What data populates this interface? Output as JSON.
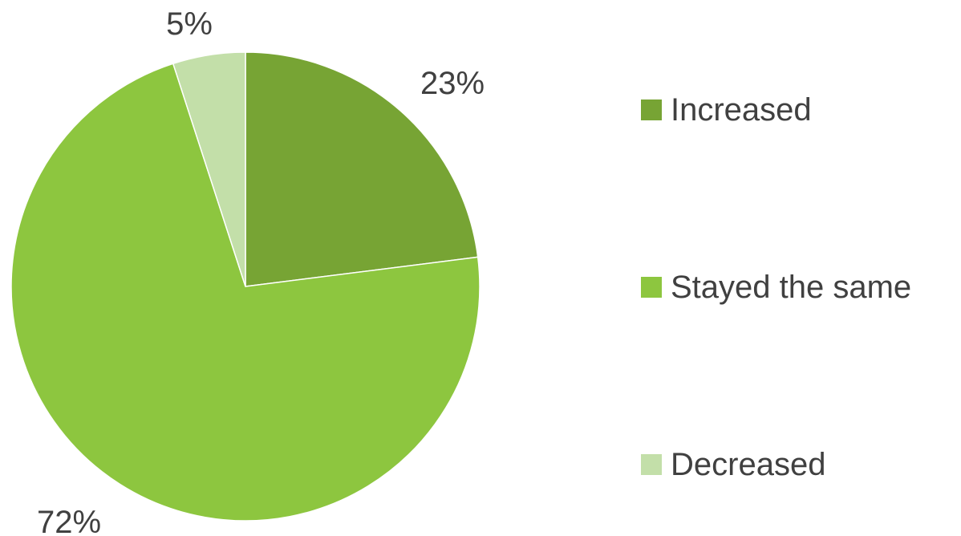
{
  "chart_data": {
    "type": "pie",
    "title": "",
    "slices": [
      {
        "label": "Increased",
        "value": 23,
        "display": "23%",
        "color": "#77a434"
      },
      {
        "label": "Stayed the same",
        "value": 72,
        "display": "72%",
        "color": "#8dc63f"
      },
      {
        "label": "Decreased",
        "value": 5,
        "display": "5%",
        "color": "#c3dfa9"
      }
    ],
    "start_angle_deg": 0,
    "direction": "clockwise",
    "legend_position": "right"
  },
  "legend": {
    "items": [
      {
        "label": "Increased",
        "color": "#77a434"
      },
      {
        "label": "Stayed the same",
        "color": "#8dc63f"
      },
      {
        "label": "Decreased",
        "color": "#c3dfa9"
      }
    ]
  }
}
